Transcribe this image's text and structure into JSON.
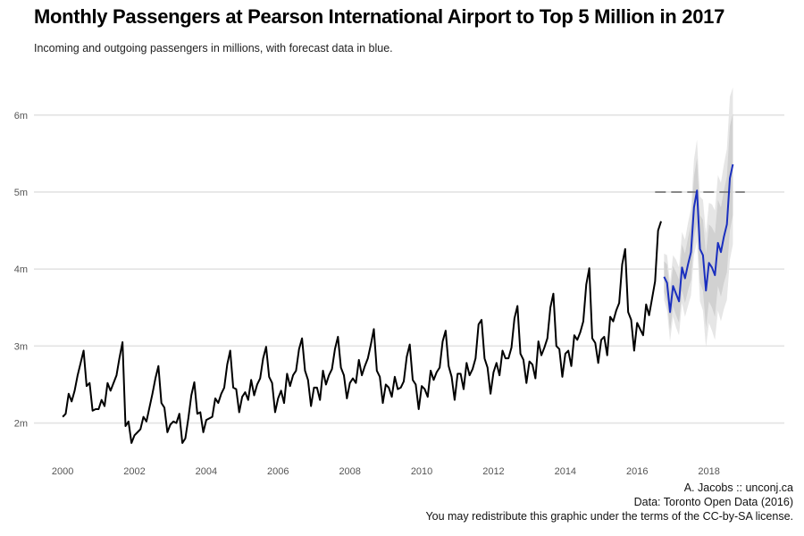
{
  "chart_data": {
    "type": "line",
    "title": "Monthly Passengers at Pearson International Airport to Top 5 Million in 2017",
    "subtitle": "Incoming and outgoing passengers in millions, with forecast data in blue.",
    "xlabel": "",
    "ylabel": "",
    "xlim": [
      1999.2,
      2020.1
    ],
    "ylim": [
      1.6,
      6.45
    ],
    "x_ticks": [
      2000,
      2002,
      2004,
      2006,
      2008,
      2010,
      2012,
      2014,
      2016,
      2018
    ],
    "x_tick_labels": [
      "2000",
      "2002",
      "2004",
      "2006",
      "2008",
      "2010",
      "2012",
      "2014",
      "2016",
      "2018"
    ],
    "y_ticks": [
      2,
      3,
      4,
      5,
      6
    ],
    "y_tick_labels": [
      "2m",
      "3m",
      "4m",
      "5m",
      "6m"
    ],
    "grid": "horizontal",
    "reference_line": {
      "y": 5.0,
      "x_start": 2016.5,
      "x_end": 2019.0,
      "style": "dashed",
      "color": "#888888"
    },
    "series": [
      {
        "role": "actual",
        "color": "#000000",
        "x_start": 2000.0,
        "x_step_months": 1,
        "values": [
          2.08,
          2.12,
          2.38,
          2.28,
          2.42,
          2.62,
          2.78,
          2.94,
          2.48,
          2.52,
          2.16,
          2.18,
          2.18,
          2.3,
          2.22,
          2.52,
          2.42,
          2.52,
          2.62,
          2.85,
          3.05,
          1.96,
          2.02,
          1.74,
          1.84,
          1.88,
          1.92,
          2.08,
          2.02,
          2.2,
          2.38,
          2.58,
          2.74,
          2.26,
          2.2,
          1.88,
          1.98,
          2.02,
          2.0,
          2.12,
          1.74,
          1.8,
          2.06,
          2.36,
          2.53,
          2.12,
          2.14,
          1.88,
          2.04,
          2.06,
          2.08,
          2.32,
          2.26,
          2.38,
          2.46,
          2.76,
          2.94,
          2.46,
          2.44,
          2.14,
          2.34,
          2.4,
          2.3,
          2.56,
          2.36,
          2.5,
          2.58,
          2.84,
          2.99,
          2.6,
          2.52,
          2.14,
          2.32,
          2.42,
          2.26,
          2.64,
          2.48,
          2.62,
          2.68,
          2.96,
          3.1,
          2.68,
          2.56,
          2.22,
          2.46,
          2.46,
          2.3,
          2.68,
          2.5,
          2.62,
          2.7,
          2.96,
          3.12,
          2.72,
          2.62,
          2.32,
          2.52,
          2.58,
          2.52,
          2.82,
          2.62,
          2.74,
          2.84,
          3.02,
          3.22,
          2.68,
          2.6,
          2.26,
          2.5,
          2.46,
          2.34,
          2.6,
          2.44,
          2.46,
          2.54,
          2.86,
          3.02,
          2.56,
          2.5,
          2.18,
          2.48,
          2.44,
          2.34,
          2.68,
          2.56,
          2.66,
          2.72,
          3.06,
          3.2,
          2.74,
          2.6,
          2.3,
          2.64,
          2.64,
          2.44,
          2.78,
          2.62,
          2.7,
          2.84,
          3.28,
          3.34,
          2.84,
          2.72,
          2.38,
          2.66,
          2.78,
          2.62,
          2.94,
          2.84,
          2.84,
          2.98,
          3.36,
          3.52,
          2.9,
          2.82,
          2.52,
          2.8,
          2.76,
          2.58,
          3.06,
          2.88,
          2.98,
          3.1,
          3.5,
          3.68,
          3.0,
          2.96,
          2.6,
          2.9,
          2.94,
          2.74,
          3.14,
          3.08,
          3.18,
          3.32,
          3.8,
          4.01,
          3.1,
          3.04,
          2.78,
          3.08,
          3.12,
          2.88,
          3.38,
          3.32,
          3.46,
          3.56,
          4.06,
          4.26,
          3.44,
          3.34,
          2.94,
          3.3,
          3.22,
          3.14,
          3.54,
          3.4,
          3.62,
          3.84,
          4.5,
          4.62
        ]
      },
      {
        "role": "forecast",
        "color": "#1a2fbf",
        "x_start": 2016.75,
        "x_step_months": 1,
        "values": [
          3.9,
          3.82,
          3.44,
          3.78,
          3.68,
          3.58,
          4.02,
          3.88,
          4.06,
          4.22,
          4.8,
          5.02,
          4.26,
          4.18,
          3.72,
          4.08,
          4.02,
          3.92,
          4.34,
          4.22,
          4.42,
          4.58,
          5.18,
          5.36
        ],
        "band_80": {
          "color": "#cccccc",
          "lower": [
            3.7,
            3.58,
            3.2,
            3.52,
            3.4,
            3.3,
            3.72,
            3.56,
            3.72,
            3.86,
            4.4,
            4.6,
            3.82,
            3.72,
            3.24,
            3.58,
            3.5,
            3.38,
            3.78,
            3.64,
            3.82,
            3.96,
            4.5,
            4.7
          ],
          "upper": [
            4.1,
            4.06,
            3.68,
            4.04,
            3.96,
            3.86,
            4.32,
            4.2,
            4.4,
            4.58,
            5.2,
            5.44,
            4.7,
            4.64,
            4.2,
            4.58,
            4.54,
            4.46,
            4.9,
            4.8,
            5.02,
            5.2,
            5.86,
            6.02
          ]
        },
        "band_95": {
          "color": "#e6e6e6",
          "lower": [
            3.6,
            3.46,
            3.06,
            3.38,
            3.24,
            3.14,
            3.56,
            3.38,
            3.52,
            3.66,
            4.18,
            4.36,
            3.58,
            3.46,
            2.98,
            3.3,
            3.2,
            3.08,
            3.46,
            3.32,
            3.48,
            3.6,
            4.12,
            4.32
          ],
          "upper": [
            4.2,
            4.18,
            3.82,
            4.18,
            4.12,
            4.02,
            4.48,
            4.38,
            4.6,
            4.78,
            5.42,
            5.68,
            4.94,
            4.9,
            4.46,
            4.86,
            4.84,
            4.76,
            5.22,
            5.12,
            5.36,
            5.56,
            6.24,
            6.36
          ]
        }
      }
    ]
  },
  "caption": {
    "line1": "A. Jacobs :: unconj.ca",
    "line2": "Data: Toronto Open Data (2016)",
    "line3": "You may redistribute this graphic under the terms of the CC-by-SA license."
  }
}
